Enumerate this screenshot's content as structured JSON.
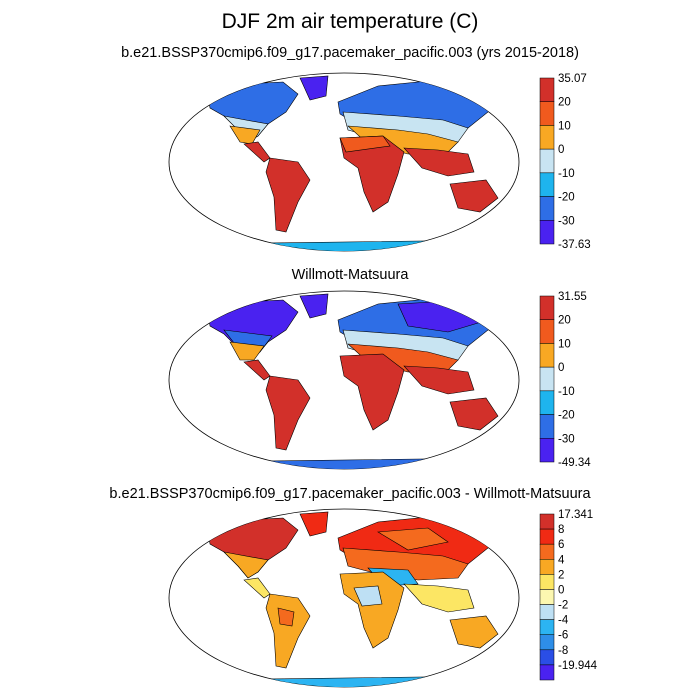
{
  "title": "DJF 2m air temperature (C)",
  "panels": [
    {
      "id": "model",
      "title": "b.e21.BSSP370cmip6.f09_g17.pacemaker_pacific.003 (yrs 2015-2018)",
      "colorbar": {
        "levels": [
          "35.07",
          "20",
          "10",
          "0",
          "-10",
          "-20",
          "-30",
          "-37.63"
        ],
        "colors": [
          "#d2302a",
          "#f05a1e",
          "#f8a823",
          "#c8e4f2",
          "#1eb4ee",
          "#2e6ee6",
          "#4a22f0"
        ]
      }
    },
    {
      "id": "obs",
      "title": "Willmott-Matsuura",
      "colorbar": {
        "levels": [
          "31.55",
          "20",
          "10",
          "0",
          "-10",
          "-20",
          "-30",
          "-49.34"
        ],
        "colors": [
          "#d2302a",
          "#f05a1e",
          "#f8a823",
          "#c8e4f2",
          "#1eb4ee",
          "#2e6ee6",
          "#4a22f0"
        ]
      }
    },
    {
      "id": "diff",
      "title": "b.e21.BSSP370cmip6.f09_g17.pacemaker_pacific.003 - Willmott-Matsuura",
      "colorbar": {
        "levels": [
          "17.341",
          "8",
          "6",
          "4",
          "2",
          "0",
          "-2",
          "-4",
          "-6",
          "-8",
          "-19.944"
        ],
        "colors": [
          "#d2302a",
          "#f02a14",
          "#f46a1e",
          "#f8a823",
          "#fce664",
          "#fcf7b0",
          "#bee0f4",
          "#2cb4f2",
          "#2e8ee8",
          "#2a4ee6",
          "#4a22f0"
        ]
      }
    }
  ]
}
